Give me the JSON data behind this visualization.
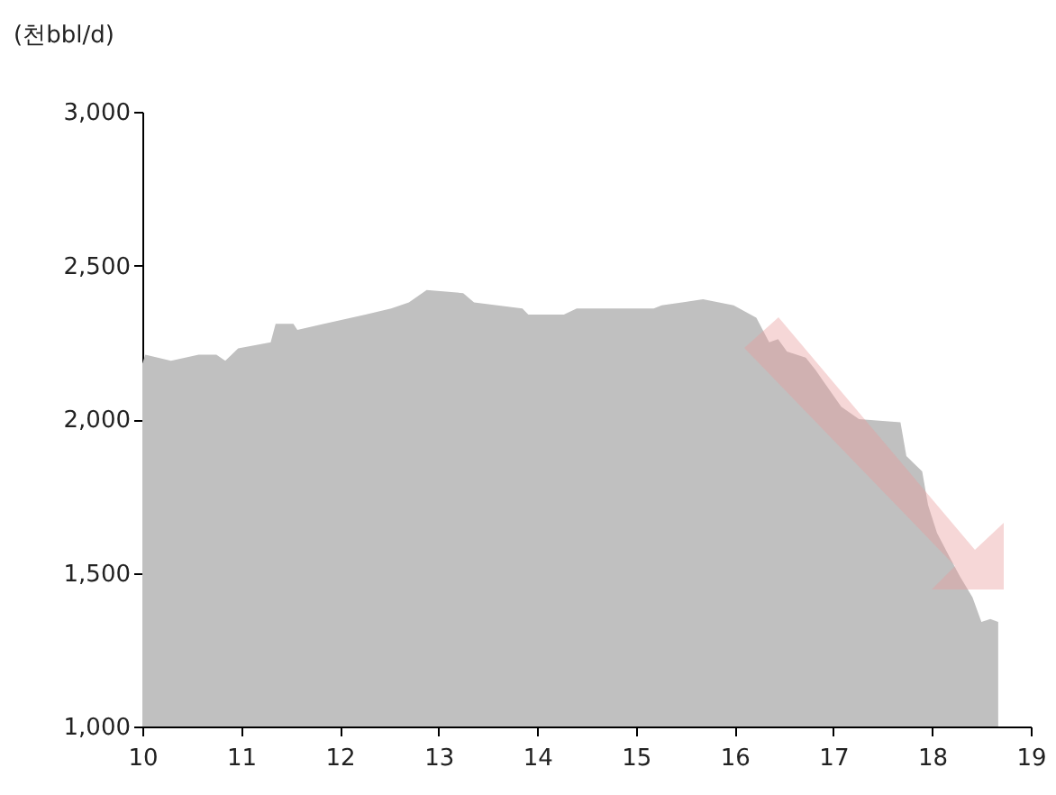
{
  "chart_data": {
    "type": "area",
    "ylabel": "(천bbl/d)",
    "color": "#c0c0c0",
    "x": [
      10.0,
      10.03,
      10.29,
      10.57,
      10.75,
      10.84,
      10.97,
      11.3,
      11.35,
      11.53,
      11.57,
      11.84,
      12.26,
      12.52,
      12.7,
      12.88,
      13.25,
      13.36,
      13.85,
      13.91,
      14.27,
      14.4,
      15.18,
      15.26,
      15.68,
      15.99,
      16.22,
      16.35,
      16.44,
      16.53,
      16.72,
      16.82,
      16.95,
      17.08,
      17.26,
      17.68,
      17.74,
      17.9,
      17.96,
      18.05,
      18.18,
      18.28,
      18.41,
      18.5,
      18.59,
      18.67
    ],
    "values": [
      2180,
      2210,
      2190,
      2210,
      2210,
      2190,
      2230,
      2250,
      2310,
      2310,
      2290,
      2310,
      2340,
      2360,
      2380,
      2420,
      2410,
      2380,
      2360,
      2340,
      2340,
      2360,
      2360,
      2370,
      2390,
      2370,
      2330,
      2250,
      2260,
      2220,
      2200,
      2160,
      2100,
      2040,
      2000,
      1990,
      1880,
      1830,
      1720,
      1630,
      1550,
      1490,
      1420,
      1340,
      1350,
      1340
    ],
    "xlim": [
      10,
      19
    ],
    "xticks": [
      10,
      11,
      12,
      13,
      14,
      15,
      16,
      17,
      18,
      19
    ],
    "ylim": [
      1000,
      3000
    ],
    "yticks": [
      {
        "value": 1000,
        "label": "1,000"
      },
      {
        "value": 1500,
        "label": "1,500"
      },
      {
        "value": 2000,
        "label": "2,000"
      },
      {
        "value": 2500,
        "label": "2,500"
      },
      {
        "value": 3000,
        "label": "3,000"
      }
    ],
    "grid": false
  }
}
